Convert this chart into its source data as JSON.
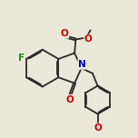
{
  "bg": "#eae8d8",
  "bond_color": "#2a2a2a",
  "bond_lw": 1.3,
  "O_color": "#cc0000",
  "N_color": "#0000cc",
  "F_color": "#228822",
  "font_size": 7.5,
  "xlim": [
    0.5,
    8.5
  ],
  "ylim": [
    1.0,
    9.0
  ]
}
